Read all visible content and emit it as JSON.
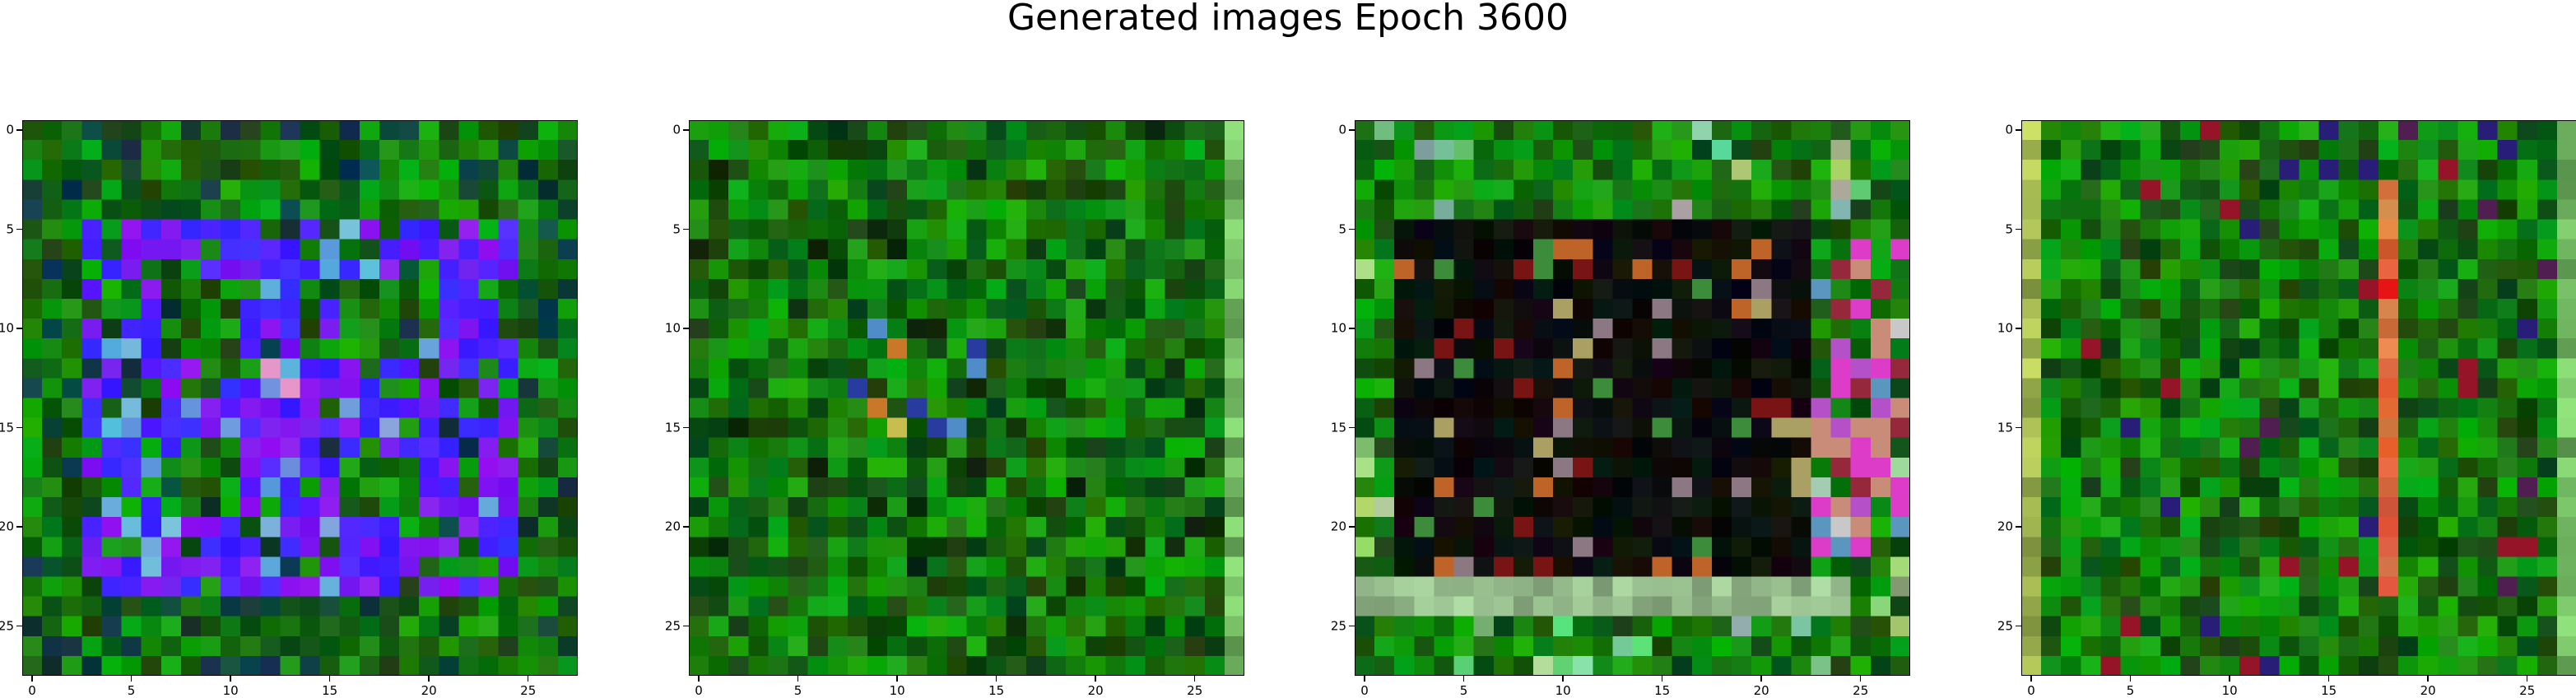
{
  "figure": {
    "title": "Generated images Epoch 3600"
  },
  "axes": {
    "tick_values": [
      0,
      5,
      10,
      15,
      20,
      25
    ],
    "tick_labels": [
      "0",
      "5",
      "10",
      "15",
      "20",
      "25"
    ],
    "image_size": 28
  },
  "panels": [
    {
      "name": "generated-image-1",
      "theme": "blue-frame"
    },
    {
      "name": "generated-image-2",
      "theme": "green-noise"
    },
    {
      "name": "generated-image-3",
      "theme": "dark-box"
    },
    {
      "name": "generated-image-4",
      "theme": "orange-stripe"
    }
  ],
  "colors": {
    "base_green": "#1b8a12",
    "dark_green": "#0b3d08",
    "blue": "#3b1cff",
    "purple": "#7a1ef0",
    "black": "#050505",
    "orange": "#d9603a",
    "light_green": "#8fd48a"
  }
}
